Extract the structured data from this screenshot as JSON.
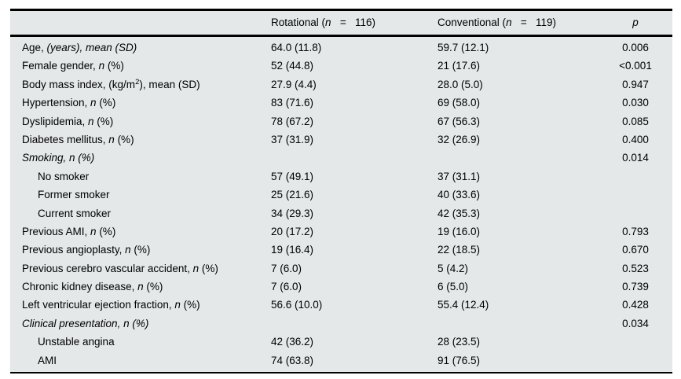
{
  "table": {
    "title_semantic": "Baseline characteristics comparison table",
    "colors": {
      "table_background": "#e4e8e9",
      "rule_color": "#000000",
      "text_color": "#000000",
      "page_background": "#ffffff"
    },
    "header": {
      "label": "",
      "rotational": [
        {
          "t": "Rotational ("
        },
        {
          "t": "n",
          "i": 1
        },
        {
          "t": "   =   116)"
        }
      ],
      "conventional": [
        {
          "t": "Conventional ("
        },
        {
          "t": "n",
          "i": 1
        },
        {
          "t": "   =   119)"
        }
      ],
      "p": [
        {
          "t": "p",
          "i": 1
        }
      ]
    },
    "rows": [
      {
        "indent": 0,
        "label": [
          {
            "t": "Age, "
          },
          {
            "t": "(years), mean (SD)",
            "i": 1
          }
        ],
        "rot": "64.0 (11.8)",
        "conv": "59.7 (12.1)",
        "p": "0.006"
      },
      {
        "indent": 0,
        "label": [
          {
            "t": "Female gender, "
          },
          {
            "t": "n",
            "i": 1
          },
          {
            "t": " (%)"
          }
        ],
        "rot": "52 (44.8)",
        "conv": "21 (17.6)",
        "p": "<0.001"
      },
      {
        "indent": 0,
        "label": [
          {
            "t": "Body mass index, (kg/m"
          },
          {
            "t": "2",
            "sup": 1
          },
          {
            "t": "), mean (SD)"
          }
        ],
        "rot": "27.9 (4.4)",
        "conv": "28.0 (5.0)",
        "p": "0.947"
      },
      {
        "indent": 0,
        "label": [
          {
            "t": "Hypertension, "
          },
          {
            "t": "n",
            "i": 1
          },
          {
            "t": " (%)"
          }
        ],
        "rot": "83 (71.6)",
        "conv": "69 (58.0)",
        "p": "0.030"
      },
      {
        "indent": 0,
        "label": [
          {
            "t": "Dyslipidemia, "
          },
          {
            "t": "n",
            "i": 1
          },
          {
            "t": " (%)"
          }
        ],
        "rot": "78 (67.2)",
        "conv": "67 (56.3)",
        "p": "0.085"
      },
      {
        "indent": 0,
        "label": [
          {
            "t": "Diabetes mellitus, "
          },
          {
            "t": "n",
            "i": 1
          },
          {
            "t": " (%)"
          }
        ],
        "rot": "37 (31.9)",
        "conv": "32 (26.9)",
        "p": "0.400"
      },
      {
        "indent": 0,
        "label": [
          {
            "t": "Smoking, n (%)",
            "i": 1
          }
        ],
        "rot": "",
        "conv": "",
        "p": "0.014"
      },
      {
        "indent": 1,
        "label": [
          {
            "t": "No smoker"
          }
        ],
        "rot": "57 (49.1)",
        "conv": "37 (31.1)",
        "p": ""
      },
      {
        "indent": 1,
        "label": [
          {
            "t": "Former smoker"
          }
        ],
        "rot": "25 (21.6)",
        "conv": "40 (33.6)",
        "p": ""
      },
      {
        "indent": 1,
        "label": [
          {
            "t": "Current smoker"
          }
        ],
        "rot": "34 (29.3)",
        "conv": "42 (35.3)",
        "p": ""
      },
      {
        "indent": 0,
        "label": [
          {
            "t": "Previous AMI, "
          },
          {
            "t": "n",
            "i": 1
          },
          {
            "t": " (%)"
          }
        ],
        "rot": "20 (17.2)",
        "conv": "19 (16.0)",
        "p": "0.793"
      },
      {
        "indent": 0,
        "label": [
          {
            "t": "Previous angioplasty, "
          },
          {
            "t": "n",
            "i": 1
          },
          {
            "t": " (%)"
          }
        ],
        "rot": "19 (16.4)",
        "conv": "22 (18.5)",
        "p": "0.670"
      },
      {
        "indent": 0,
        "label": [
          {
            "t": "Previous cerebro vascular accident, "
          },
          {
            "t": "n",
            "i": 1
          },
          {
            "t": " (%)"
          }
        ],
        "rot": "7 (6.0)",
        "conv": "5 (4.2)",
        "p": "0.523"
      },
      {
        "indent": 0,
        "label": [
          {
            "t": "Chronic kidney disease, "
          },
          {
            "t": "n",
            "i": 1
          },
          {
            "t": " (%)"
          }
        ],
        "rot": "7 (6.0)",
        "conv": "6 (5.0)",
        "p": "0.739"
      },
      {
        "indent": 0,
        "label": [
          {
            "t": "Left ventricular ejection fraction, "
          },
          {
            "t": "n",
            "i": 1
          },
          {
            "t": " (%)"
          }
        ],
        "rot": "56.6 (10.0)",
        "conv": "55.4 (12.4)",
        "p": "0.428"
      },
      {
        "indent": 0,
        "label": [
          {
            "t": "Clinical presentation, n (%)",
            "i": 1
          }
        ],
        "rot": "",
        "conv": "",
        "p": "0.034"
      },
      {
        "indent": 1,
        "label": [
          {
            "t": "Unstable angina"
          }
        ],
        "rot": "42 (36.2)",
        "conv": "28 (23.5)",
        "p": ""
      },
      {
        "indent": 1,
        "label": [
          {
            "t": "AMI"
          }
        ],
        "rot": "74 (63.8)",
        "conv": "91 (76.5)",
        "p": ""
      }
    ]
  }
}
